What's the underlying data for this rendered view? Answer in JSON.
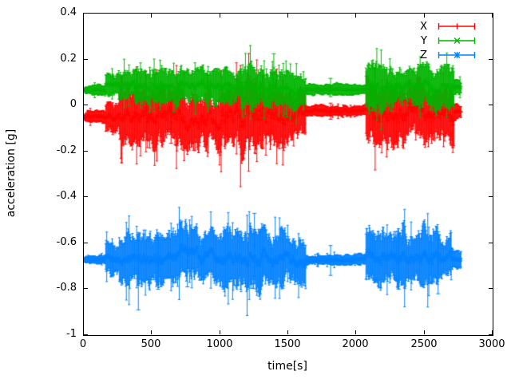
{
  "figure": {
    "background": "#ffffff",
    "axis_color": "#000000"
  },
  "chart_data": {
    "type": "line",
    "style": "errorbars",
    "title": "",
    "xlabel": "time[s]",
    "ylabel": "acceleration [g]",
    "xlim": [
      0,
      3000
    ],
    "ylim": [
      -1,
      0.4
    ],
    "grid": false,
    "legend_position": "top-right-inside",
    "xticks": [
      {
        "value": 0,
        "label": "0"
      },
      {
        "value": 500,
        "label": "500"
      },
      {
        "value": 1000,
        "label": "1000"
      },
      {
        "value": 1500,
        "label": "1500"
      },
      {
        "value": 2000,
        "label": "2000"
      },
      {
        "value": 2500,
        "label": "2500"
      },
      {
        "value": 3000,
        "label": "3000"
      }
    ],
    "yticks": [
      {
        "value": 0.4,
        "label": "0.4"
      },
      {
        "value": 0.2,
        "label": "0.2"
      },
      {
        "value": 0,
        "label": "0"
      },
      {
        "value": -0.2,
        "label": "-0.2"
      },
      {
        "value": -0.4,
        "label": "-0.4"
      },
      {
        "value": -0.6,
        "label": "-0.6"
      },
      {
        "value": -0.8,
        "label": "-0.8"
      },
      {
        "value": -1,
        "label": "-1"
      }
    ],
    "segments_format": [
      "t_start",
      "t_end",
      "mean_g",
      "noise_amp_g",
      "errorbar_amp_g"
    ],
    "series": [
      {
        "name": "X",
        "color": "#ff0000",
        "marker": "plus",
        "segments": [
          [
            0,
            160,
            -0.05,
            0.004,
            0.01
          ],
          [
            160,
            260,
            -0.048,
            0.012,
            0.025
          ],
          [
            260,
            420,
            -0.052,
            0.025,
            0.045
          ],
          [
            420,
            560,
            -0.05,
            0.03,
            0.05
          ],
          [
            560,
            700,
            -0.048,
            0.035,
            0.055
          ],
          [
            700,
            860,
            -0.05,
            0.03,
            0.05
          ],
          [
            860,
            1000,
            -0.048,
            0.028,
            0.045
          ],
          [
            1000,
            1150,
            -0.045,
            0.03,
            0.05
          ],
          [
            1150,
            1320,
            -0.06,
            0.038,
            0.06
          ],
          [
            1320,
            1480,
            -0.045,
            0.03,
            0.05
          ],
          [
            1480,
            1630,
            -0.04,
            0.022,
            0.04
          ],
          [
            1630,
            2070,
            -0.025,
            0.004,
            0.009
          ],
          [
            2070,
            2250,
            -0.048,
            0.032,
            0.05
          ],
          [
            2250,
            2420,
            -0.05,
            0.03,
            0.048
          ],
          [
            2420,
            2600,
            -0.048,
            0.032,
            0.05
          ],
          [
            2600,
            2720,
            -0.045,
            0.028,
            0.045
          ],
          [
            2720,
            2770,
            -0.03,
            0.005,
            0.012
          ]
        ],
        "outliers": [
          {
            "t": 470,
            "lo": -0.15,
            "hi": 0.01
          },
          {
            "t": 640,
            "lo": -0.165,
            "hi": 0.02
          },
          {
            "t": 1245,
            "lo": -0.175,
            "hi": 0.115
          },
          {
            "t": 1383,
            "lo": 0.02,
            "hi": 0.14
          },
          {
            "t": 1811,
            "lo": -0.06,
            "hi": 0.01
          }
        ]
      },
      {
        "name": "Y",
        "color": "#00b400",
        "marker": "cross",
        "segments": [
          [
            0,
            160,
            0.065,
            0.003,
            0.01
          ],
          [
            160,
            260,
            0.09,
            0.008,
            0.018
          ],
          [
            260,
            420,
            0.085,
            0.012,
            0.025
          ],
          [
            420,
            560,
            0.082,
            0.014,
            0.028
          ],
          [
            560,
            700,
            0.08,
            0.015,
            0.03
          ],
          [
            700,
            860,
            0.085,
            0.013,
            0.026
          ],
          [
            860,
            1000,
            0.082,
            0.014,
            0.028
          ],
          [
            1000,
            1150,
            0.08,
            0.014,
            0.03
          ],
          [
            1150,
            1320,
            0.072,
            0.018,
            0.035
          ],
          [
            1320,
            1480,
            0.075,
            0.018,
            0.032
          ],
          [
            1480,
            1630,
            0.07,
            0.015,
            0.028
          ],
          [
            1630,
            2070,
            0.07,
            0.003,
            0.009
          ],
          [
            2070,
            2250,
            0.072,
            0.022,
            0.038
          ],
          [
            2250,
            2420,
            0.08,
            0.018,
            0.032
          ],
          [
            2420,
            2600,
            0.075,
            0.022,
            0.036
          ],
          [
            2600,
            2720,
            0.078,
            0.018,
            0.032
          ],
          [
            2720,
            2770,
            0.08,
            0.004,
            0.012
          ]
        ],
        "outliers": [
          {
            "t": 930,
            "lo": 0.0,
            "hi": 0.105
          },
          {
            "t": 1394,
            "lo": 0.1,
            "hi": 0.225
          },
          {
            "t": 1488,
            "lo": -0.05,
            "hi": 0.095
          },
          {
            "t": 1811,
            "lo": 0.038,
            "hi": 0.118
          },
          {
            "t": 2120,
            "lo": -0.02,
            "hi": 0.09
          },
          {
            "t": 2262,
            "lo": -0.025,
            "hi": 0.09
          },
          {
            "t": 2555,
            "lo": -0.02,
            "hi": 0.09
          },
          {
            "t": 2680,
            "lo": 0.05,
            "hi": 0.13
          }
        ]
      },
      {
        "name": "Z",
        "color": "#0080ff",
        "marker": "star",
        "segments": [
          [
            0,
            160,
            -0.672,
            0.003,
            0.008
          ],
          [
            160,
            260,
            -0.67,
            0.015,
            0.03
          ],
          [
            260,
            420,
            -0.668,
            0.022,
            0.045
          ],
          [
            420,
            560,
            -0.665,
            0.022,
            0.042
          ],
          [
            560,
            700,
            -0.66,
            0.025,
            0.048
          ],
          [
            700,
            860,
            -0.655,
            0.025,
            0.05
          ],
          [
            860,
            1000,
            -0.662,
            0.022,
            0.045
          ],
          [
            1000,
            1150,
            -0.66,
            0.025,
            0.048
          ],
          [
            1150,
            1320,
            -0.668,
            0.028,
            0.055
          ],
          [
            1320,
            1480,
            -0.668,
            0.025,
            0.048
          ],
          [
            1480,
            1630,
            -0.67,
            0.02,
            0.04
          ],
          [
            1630,
            2070,
            -0.672,
            0.003,
            0.008
          ],
          [
            2070,
            2250,
            -0.66,
            0.025,
            0.048
          ],
          [
            2250,
            2420,
            -0.658,
            0.025,
            0.05
          ],
          [
            2420,
            2600,
            -0.665,
            0.022,
            0.045
          ],
          [
            2600,
            2700,
            -0.668,
            0.018,
            0.038
          ],
          [
            2700,
            2770,
            -0.67,
            0.006,
            0.015
          ]
        ],
        "outliers": [
          {
            "t": 400,
            "lo": -0.89,
            "hi": -0.56
          },
          {
            "t": 545,
            "lo": -0.8,
            "hi": -0.58
          },
          {
            "t": 760,
            "lo": -0.79,
            "hi": -0.565
          },
          {
            "t": 1252,
            "lo": -0.745,
            "hi": -0.47
          },
          {
            "t": 1811,
            "lo": -0.74,
            "hi": -0.61
          },
          {
            "t": 2310,
            "lo": -0.8,
            "hi": -0.56
          },
          {
            "t": 2600,
            "lo": -0.82,
            "hi": -0.55
          }
        ]
      }
    ]
  }
}
